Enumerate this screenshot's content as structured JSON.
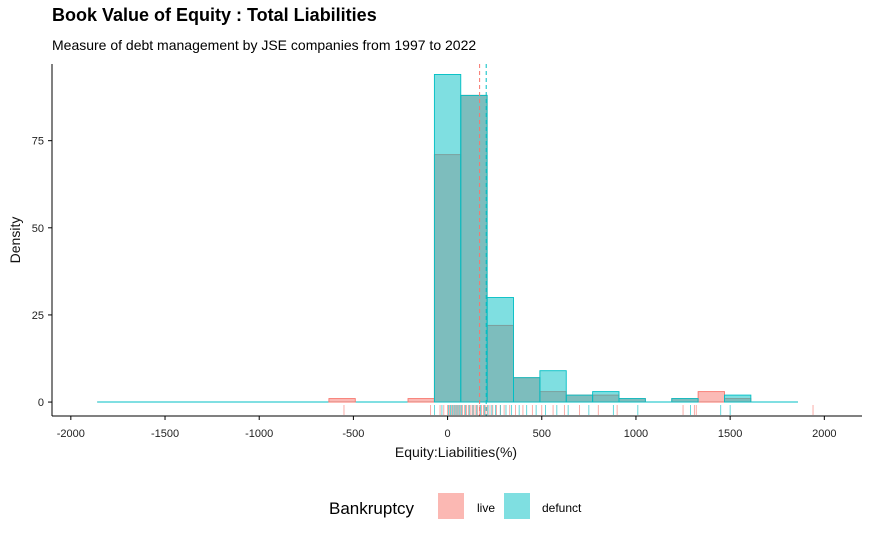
{
  "chart_data": {
    "type": "histogram",
    "title": "Book Value of Equity : Total Liabilities",
    "subtitle": "Measure of debt management by JSE companies from 1997 to 2022",
    "xlabel": "Equity:Liabilities(%)",
    "ylabel": "Density",
    "xlim": [
      -2100,
      2200
    ],
    "ylim": [
      -4,
      97
    ],
    "x_ticks": [
      -2000,
      -1500,
      -1000,
      -500,
      0,
      500,
      1000,
      1500,
      2000
    ],
    "x_tick_labels": [
      "-2000",
      "-1500",
      "-1000",
      "-500",
      "0",
      "500",
      "1000",
      "1500",
      "2000"
    ],
    "y_ticks": [
      0,
      25,
      50,
      75
    ],
    "y_tick_labels": [
      "0",
      "25",
      "50",
      "75"
    ],
    "bin_width": 140,
    "grid": false,
    "legend_position": "bottom",
    "legend_title": "Bankruptcy",
    "series": [
      {
        "name": "live",
        "color": "#f8766d",
        "fill": "#fbb8b3",
        "density_line_range": [
          -1860,
          1860
        ],
        "mean_line": 170,
        "bins": [
          {
            "x0": -630,
            "x1": -490,
            "value": 1
          },
          {
            "x0": -210,
            "x1": -70,
            "value": 1
          },
          {
            "x0": -70,
            "x1": 70,
            "value": 71
          },
          {
            "x0": 70,
            "x1": 210,
            "value": 88
          },
          {
            "x0": 210,
            "x1": 350,
            "value": 22
          },
          {
            "x0": 350,
            "x1": 490,
            "value": 7
          },
          {
            "x0": 490,
            "x1": 630,
            "value": 3
          },
          {
            "x0": 630,
            "x1": 770,
            "value": 2
          },
          {
            "x0": 770,
            "x1": 910,
            "value": 2
          },
          {
            "x0": 910,
            "x1": 1050,
            "value": 1
          },
          {
            "x0": 1190,
            "x1": 1330,
            "value": 1
          },
          {
            "x0": 1330,
            "x1": 1470,
            "value": 3
          },
          {
            "x0": 1470,
            "x1": 1610,
            "value": 1
          }
        ],
        "rug": [
          -550,
          -90,
          -40,
          -20,
          0,
          10,
          20,
          30,
          40,
          50,
          60,
          70,
          80,
          90,
          100,
          110,
          120,
          130,
          140,
          150,
          160,
          170,
          180,
          190,
          200,
          210,
          225,
          240,
          260,
          280,
          300,
          330,
          360,
          400,
          450,
          500,
          560,
          620,
          700,
          800,
          900,
          1250,
          1310,
          1320,
          1940
        ]
      },
      {
        "name": "defunct",
        "color": "#00bfc4",
        "fill": "#7fdfe1",
        "density_line_range": [
          -1860,
          1860
        ],
        "mean_line": 205,
        "bins": [
          {
            "x0": -70,
            "x1": 70,
            "value": 94
          },
          {
            "x0": 70,
            "x1": 210,
            "value": 88
          },
          {
            "x0": 210,
            "x1": 350,
            "value": 30
          },
          {
            "x0": 350,
            "x1": 490,
            "value": 7
          },
          {
            "x0": 490,
            "x1": 630,
            "value": 9
          },
          {
            "x0": 630,
            "x1": 770,
            "value": 2
          },
          {
            "x0": 770,
            "x1": 910,
            "value": 3
          },
          {
            "x0": 910,
            "x1": 1050,
            "value": 1
          },
          {
            "x0": 1190,
            "x1": 1330,
            "value": 1
          },
          {
            "x0": 1470,
            "x1": 1610,
            "value": 2
          }
        ],
        "rug": [
          -70,
          -30,
          5,
          15,
          25,
          35,
          45,
          55,
          65,
          75,
          95,
          115,
          135,
          155,
          175,
          195,
          215,
          235,
          255,
          280,
          310,
          340,
          380,
          420,
          470,
          520,
          580,
          640,
          750,
          880,
          1010,
          1290,
          1450,
          1500
        ]
      }
    ]
  }
}
